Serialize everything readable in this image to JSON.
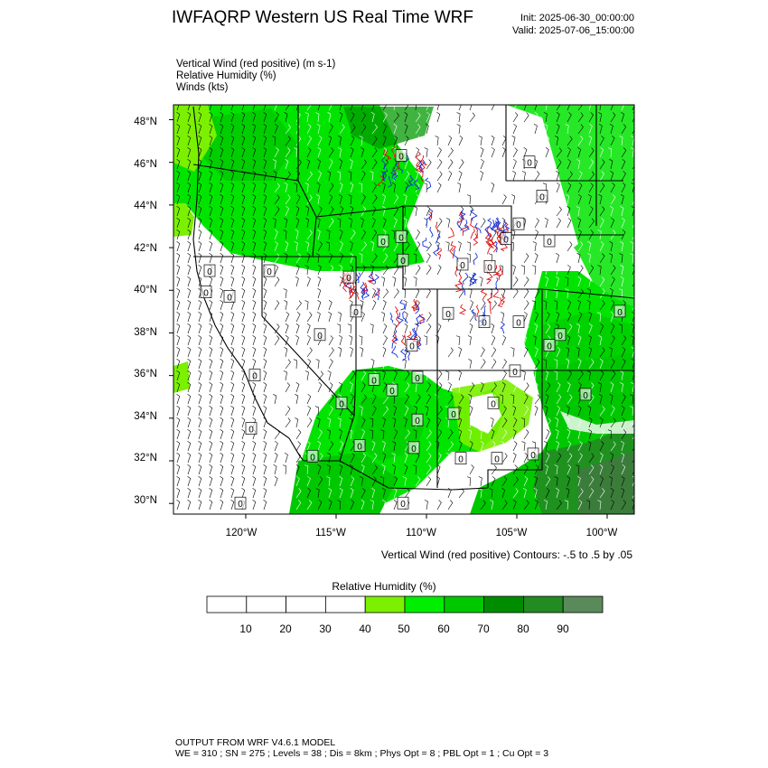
{
  "header": {
    "title": "IWFAQRP Western US Real Time WRF",
    "init": "Init: 2025-06-30_00:00:00",
    "valid": "Valid: 2025-07-06_15:00:00"
  },
  "variables": [
    "Vertical Wind (red positive)   (m s-1)",
    "Relative Humidity   (%)",
    "Winds   (kts)"
  ],
  "map": {
    "lat_ticks": [
      "48°N",
      "46°N",
      "44°N",
      "42°N",
      "40°N",
      "38°N",
      "36°N",
      "34°N",
      "32°N",
      "30°N"
    ],
    "lon_ticks": [
      "120°W",
      "115°W",
      "110°W",
      "105°W",
      "100°W"
    ],
    "contour_note": "Vertical Wind (red positive) Contours: -.5 to .5 by .05",
    "extent": {
      "lon_min": -124.0,
      "lon_max": -98.5,
      "lat_min": 29.5,
      "lat_max": 48.7
    },
    "contour_labels": [
      {
        "text": "0",
        "lon": -122,
        "lat": 40.9
      },
      {
        "text": "0",
        "lon": -122.2,
        "lat": 39.9
      },
      {
        "text": "0",
        "lon": -120.9,
        "lat": 39.7
      },
      {
        "text": "0",
        "lon": -118.7,
        "lat": 40.9
      },
      {
        "text": "0",
        "lon": -114.3,
        "lat": 40.6
      },
      {
        "text": "0",
        "lon": -113.9,
        "lat": 39.0
      },
      {
        "text": "0",
        "lon": -115.9,
        "lat": 37.9
      },
      {
        "text": "0",
        "lon": -110.8,
        "lat": 37.4
      },
      {
        "text": "0",
        "lon": -108.8,
        "lat": 38.9
      },
      {
        "text": "0",
        "lon": -106.8,
        "lat": 38.5
      },
      {
        "text": "0",
        "lon": -104.9,
        "lat": 38.5
      },
      {
        "text": "0",
        "lon": -103.2,
        "lat": 37.4
      },
      {
        "text": "0",
        "lon": -105.1,
        "lat": 36.2
      },
      {
        "text": "0",
        "lon": -112.4,
        "lat": 42.3
      },
      {
        "text": "0",
        "lon": -111.3,
        "lat": 41.4
      },
      {
        "text": "0",
        "lon": -108.0,
        "lat": 41.2
      },
      {
        "text": "0",
        "lon": -106.5,
        "lat": 41.1
      },
      {
        "text": "0",
        "lon": -105.6,
        "lat": 42.4
      },
      {
        "text": "0",
        "lon": -111.4,
        "lat": 42.5
      },
      {
        "text": "0",
        "lon": -104.9,
        "lat": 43.1
      },
      {
        "text": "0",
        "lon": -103.6,
        "lat": 44.4
      },
      {
        "text": "0",
        "lon": -104.3,
        "lat": 46.0
      },
      {
        "text": "0",
        "lon": -103.2,
        "lat": 42.3
      },
      {
        "text": "0",
        "lon": -99.3,
        "lat": 39.0
      },
      {
        "text": "0",
        "lon": -102.6,
        "lat": 37.9
      },
      {
        "text": "0",
        "lon": -101.2,
        "lat": 35.1
      },
      {
        "text": "0",
        "lon": -106.3,
        "lat": 34.7
      },
      {
        "text": "0",
        "lon": -108.5,
        "lat": 34.2
      },
      {
        "text": "0",
        "lon": -110.5,
        "lat": 33.9
      },
      {
        "text": "0",
        "lon": -110.5,
        "lat": 35.9
      },
      {
        "text": "0",
        "lon": -111.9,
        "lat": 35.3
      },
      {
        "text": "0",
        "lon": -112.9,
        "lat": 35.8
      },
      {
        "text": "0",
        "lon": -114.7,
        "lat": 34.7
      },
      {
        "text": "0",
        "lon": -113.7,
        "lat": 32.7
      },
      {
        "text": "0",
        "lon": -110.7,
        "lat": 32.6
      },
      {
        "text": "0",
        "lon": -108.1,
        "lat": 32.1
      },
      {
        "text": "0",
        "lon": -106.1,
        "lat": 32.1
      },
      {
        "text": "0",
        "lon": -104.1,
        "lat": 32.3
      },
      {
        "text": "0",
        "lon": -116.3,
        "lat": 32.2
      },
      {
        "text": "0",
        "lon": -119.5,
        "lat": 36.0
      },
      {
        "text": "0",
        "lon": -119.7,
        "lat": 33.5
      },
      {
        "text": "0",
        "lon": -120.3,
        "lat": 30.0
      },
      {
        "text": "0",
        "lon": -111.3,
        "lat": 30.0
      },
      {
        "text": "0",
        "lon": -111.4,
        "lat": 46.3
      }
    ]
  },
  "colorbar": {
    "title": "Relative Humidity  (%)",
    "labels": [
      "10",
      "20",
      "30",
      "40",
      "50",
      "60",
      "70",
      "80",
      "90"
    ],
    "colors": [
      "#ffffff",
      "#ffffff",
      "#ffffff",
      "#ffffff",
      "#7bf000",
      "#00ee00",
      "#00c800",
      "#008c00",
      "#228b22",
      "#5a8a5a"
    ]
  },
  "footer": {
    "line1": "OUTPUT FROM WRF V4.6.1 MODEL",
    "line2": "WE = 310 ; SN = 275 ; Levels = 38 ; Dis = 8km ; Phys Opt = 8 ; PBL Opt = 1 ; Cu Opt = 3"
  }
}
